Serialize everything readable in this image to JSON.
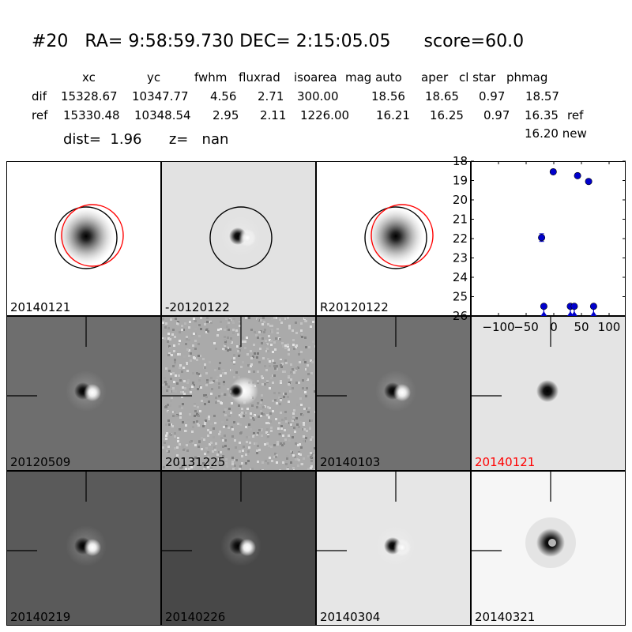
{
  "header": {
    "id": "#20",
    "ra_label": "RA=",
    "ra": "9:58:59.730",
    "dec_label": "DEC=",
    "dec": "2:15:05.05",
    "score_label": "score=",
    "score": "60.0"
  },
  "table": {
    "columns": [
      "xc",
      "yc",
      "fwhm",
      "fluxrad",
      "isoarea",
      "mag auto",
      "aper",
      "cl star",
      "phmag"
    ],
    "rows": [
      {
        "name": "dif",
        "values": [
          "15328.67",
          "10347.77",
          "4.56",
          "2.71",
          "300.00",
          "18.56",
          "18.65",
          "0.97",
          "18.57"
        ],
        "suffix": ""
      },
      {
        "name": "ref",
        "values": [
          "15330.48",
          "10348.54",
          "2.95",
          "2.11",
          "1226.00",
          "16.21",
          "16.25",
          "0.97",
          "16.35"
        ],
        "suffix": "ref"
      }
    ],
    "new_value": "16.20",
    "new_suffix": "new"
  },
  "dist": {
    "label": "dist=",
    "value": "1.96",
    "z_label": "z=",
    "z_value": "nan"
  },
  "stamps": [
    {
      "label": "20140121",
      "bg": "#ffffff",
      "style": "blob",
      "circles": [
        "black",
        "red"
      ],
      "label_color": "#000000"
    },
    {
      "label": "-20120122",
      "bg": "#e2e2e2",
      "style": "dipole-soft",
      "circles": [
        "black"
      ],
      "label_color": "#000000"
    },
    {
      "label": "R20120122",
      "bg": "#ffffff",
      "style": "blob",
      "circles": [
        "black",
        "red"
      ],
      "label_color": "#000000"
    },
    {
      "label": "20120509",
      "bg": "#6e6e6e",
      "style": "dipole",
      "circles": [],
      "label_color": "#000000"
    },
    {
      "label": "20131225",
      "bg": "#aaaaaa",
      "style": "noisy",
      "circles": [],
      "label_color": "#000000"
    },
    {
      "label": "20140103",
      "bg": "#707070",
      "style": "dipole",
      "circles": [],
      "label_color": "#000000"
    },
    {
      "label": "20140121",
      "bg": "#e4e4e4",
      "style": "dark",
      "circles": [],
      "label_color": "#ff0000"
    },
    {
      "label": "20140219",
      "bg": "#5a5a5a",
      "style": "dipole",
      "circles": [],
      "label_color": "#000000"
    },
    {
      "label": "20140226",
      "bg": "#484848",
      "style": "dipole",
      "circles": [],
      "label_color": "#000000"
    },
    {
      "label": "20140304",
      "bg": "#e6e6e6",
      "style": "dipole-soft",
      "circles": [],
      "label_color": "#000000"
    },
    {
      "label": "20140321",
      "bg": "#f6f6f6",
      "style": "ring",
      "circles": [],
      "label_color": "#000000"
    }
  ],
  "chart_data": {
    "type": "scatter",
    "xlim": [
      -150,
      130
    ],
    "ylim": [
      26,
      18
    ],
    "x_ticks": [
      -100,
      -50,
      0,
      50,
      100
    ],
    "y_ticks": [
      18,
      19,
      20,
      21,
      22,
      23,
      24,
      25,
      26
    ],
    "x_tick_labels": [
      "−100",
      "−50",
      "0",
      "50",
      "100"
    ],
    "y_tick_labels": [
      "18",
      "19",
      "20",
      "21",
      "22",
      "23",
      "24",
      "25",
      "26"
    ],
    "color": "#0000cc",
    "points": [
      {
        "x": -22,
        "y": 21.95,
        "err": 0.2
      },
      {
        "x": -1,
        "y": 18.55,
        "err": 0
      },
      {
        "x": 43,
        "y": 18.75,
        "err": 0
      },
      {
        "x": 63,
        "y": 19.05,
        "err": 0
      }
    ],
    "upper_limits": [
      {
        "x": -18,
        "y": 25.5
      },
      {
        "x": 30,
        "y": 25.5
      },
      {
        "x": 37,
        "y": 25.5
      },
      {
        "x": 72,
        "y": 25.5
      }
    ]
  }
}
